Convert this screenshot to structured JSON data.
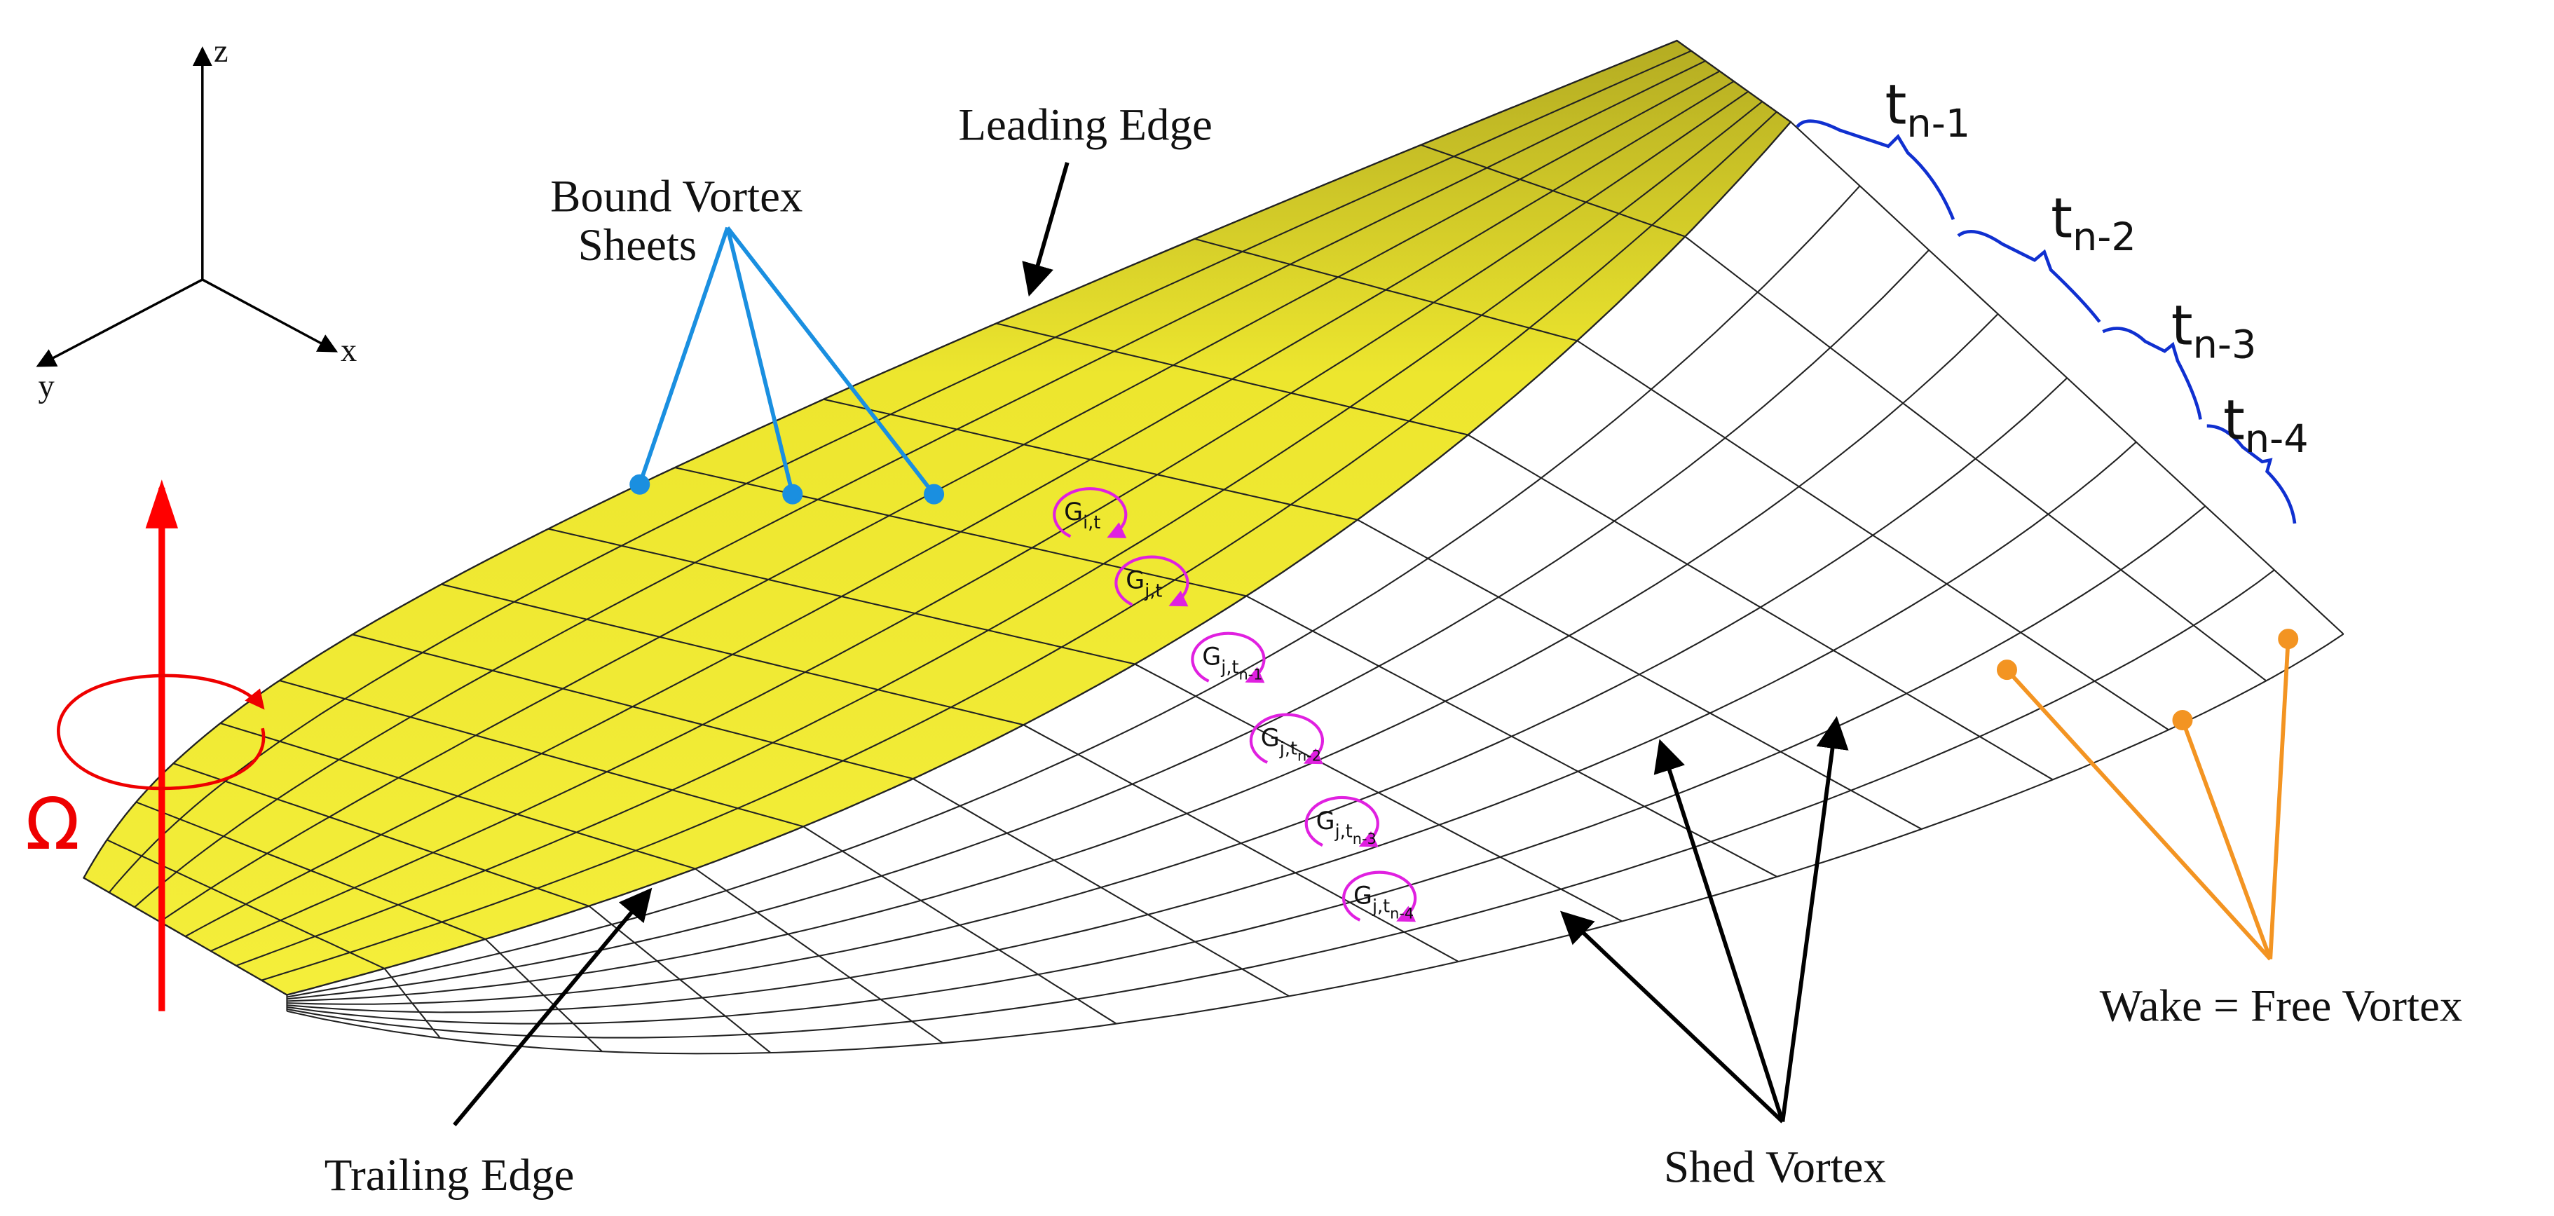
{
  "axes": {
    "x": "x",
    "y": "y",
    "z": "z"
  },
  "omega": "Ω",
  "leading_edge": "Leading Edge",
  "bound_vortex": [
    "Bound Vortex",
    "Sheets"
  ],
  "trailing_edge": "Trailing Edge",
  "shed_vortex": "Shed Vortex",
  "wake": "Wake = Free Vortex",
  "time_steps": [
    {
      "t": "t",
      "sub": "n-1"
    },
    {
      "t": "t",
      "sub": "n-2"
    },
    {
      "t": "t",
      "sub": "n-3"
    },
    {
      "t": "t",
      "sub": "n-4"
    }
  ],
  "circulations": [
    {
      "g": "G",
      "sub": "i,t"
    },
    {
      "g": "G",
      "sub": "j,t"
    },
    {
      "g": "G",
      "sub": "j,t",
      "subsub": "n-1"
    },
    {
      "g": "G",
      "sub": "j,t",
      "subsub": "n-2"
    },
    {
      "g": "G",
      "sub": "j,t",
      "subsub": "n-3"
    },
    {
      "g": "G",
      "sub": "j,t",
      "subsub": "n-4"
    }
  ]
}
